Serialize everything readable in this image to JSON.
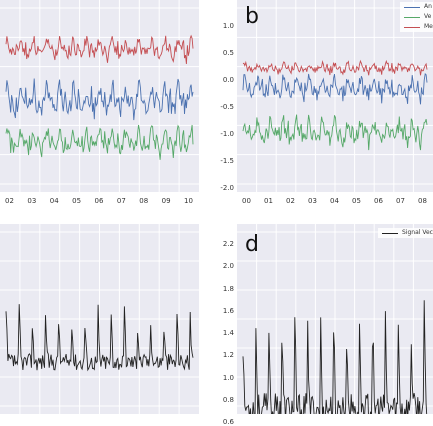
{
  "chart_data": [
    {
      "type": "line",
      "panel_label": "",
      "x_ticks": [
        "02",
        "03",
        "04",
        "05",
        "06",
        "07",
        "08",
        "09",
        "10"
      ],
      "y_ticks": [],
      "series": [
        {
          "color": "#c44e52",
          "level": 0.76,
          "amp": 0.08
        },
        {
          "color": "#4c72b0",
          "level": 0.5,
          "amp": 0.12
        },
        {
          "color": "#55a868",
          "level": 0.28,
          "amp": 0.1
        }
      ]
    },
    {
      "type": "line",
      "panel_label": "b",
      "x_ticks": [
        "00",
        "01",
        "02",
        "03",
        "04",
        "05",
        "06",
        "07",
        "08"
      ],
      "y_ticks": [
        "1.0",
        "0.5",
        "0.0",
        "-0.5",
        "-1.0",
        "-1.5",
        "-2.0"
      ],
      "ylim": [
        -2.0,
        1.0
      ],
      "legend": [
        "An",
        "Ve",
        "Me"
      ],
      "series": [
        {
          "name": "An",
          "color": "#4c72b0",
          "level": -0.1,
          "amp": 0.3
        },
        {
          "name": "Ve",
          "color": "#55a868",
          "level": -0.9,
          "amp": 0.35
        },
        {
          "name": "Me",
          "color": "#c44e52",
          "level": 0.25,
          "amp": 0.15
        }
      ]
    },
    {
      "type": "line",
      "panel_label": "",
      "x_ticks": [],
      "y_ticks": [],
      "series": [
        {
          "color": "#222222",
          "level": 0.35,
          "amp": 0.3
        }
      ]
    },
    {
      "type": "line",
      "panel_label": "d",
      "x_ticks": [],
      "y_ticks": [
        "2.2",
        "2.0",
        "1.8",
        "1.6",
        "1.4",
        "1.2",
        "1.0",
        "0.8",
        "0.6"
      ],
      "ylim": [
        0.6,
        2.2
      ],
      "legend": [
        "Signal Vecto"
      ],
      "series": [
        {
          "name": "Signal Vecto",
          "color": "#222222",
          "level": 0.95,
          "amp": 0.9
        }
      ]
    }
  ]
}
